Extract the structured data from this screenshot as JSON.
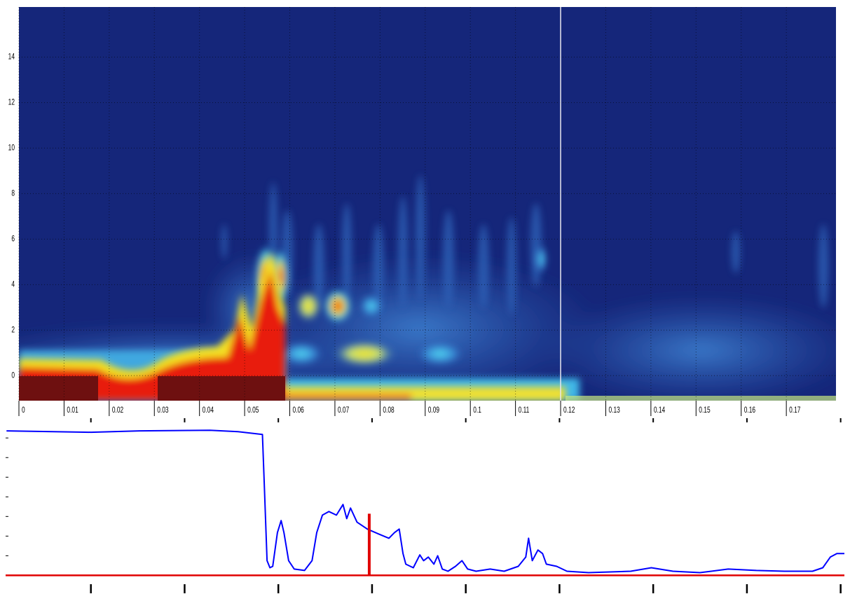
{
  "chart_data": [
    {
      "type": "heatmap",
      "xlim": [
        0,
        0.181
      ],
      "ylim": [
        -1.1,
        16.2
      ],
      "xticks": [
        0,
        0.01,
        0.02,
        0.03,
        0.04,
        0.05,
        0.06,
        0.07,
        0.08,
        0.09,
        0.1,
        0.11,
        0.12,
        0.13,
        0.14,
        0.15,
        0.16,
        0.17
      ],
      "yticks": [
        0,
        2,
        4,
        6,
        8,
        10,
        12,
        14
      ],
      "grid": true,
      "cursor_x": 0.12,
      "background": "#15267a"
    },
    {
      "type": "line",
      "xlim": [
        0.09,
        9.04
      ],
      "ylim": [
        -0.2,
        7.9
      ],
      "xticks": [
        1,
        2,
        3,
        4,
        5,
        6,
        7,
        8,
        9
      ],
      "yticks": [
        1,
        2,
        3,
        4,
        5,
        6,
        7
      ],
      "x": [
        0.1,
        1.0,
        1.52,
        2.27,
        2.57,
        2.83,
        2.85,
        2.88,
        2.91,
        2.94,
        2.99,
        3.03,
        3.06,
        3.11,
        3.17,
        3.28,
        3.36,
        3.41,
        3.47,
        3.54,
        3.62,
        3.69,
        3.73,
        3.77,
        3.84,
        3.95,
        4.07,
        4.18,
        4.24,
        4.29,
        4.33,
        4.36,
        4.44,
        4.51,
        4.55,
        4.6,
        4.66,
        4.7,
        4.75,
        4.81,
        4.89,
        4.96,
        5.02,
        5.11,
        5.26,
        5.41,
        5.56,
        5.64,
        5.67,
        5.71,
        5.77,
        5.82,
        5.86,
        5.97,
        6.08,
        6.31,
        6.76,
        6.98,
        7.21,
        7.5,
        7.8,
        8.1,
        8.4,
        8.7,
        8.81,
        8.89,
        8.96,
        9.04
      ],
      "series": [
        {
          "color": "#0000ff",
          "values": [
            7.36,
            7.29,
            7.36,
            7.39,
            7.32,
            7.18,
            4.68,
            0.75,
            0.39,
            0.46,
            2.18,
            2.79,
            2.18,
            0.75,
            0.32,
            0.25,
            0.75,
            2.18,
            3.07,
            3.25,
            3.07,
            3.61,
            2.89,
            3.43,
            2.71,
            2.36,
            2.11,
            1.89,
            2.18,
            2.36,
            1.11,
            0.57,
            0.39,
            1.04,
            0.75,
            0.93,
            0.57,
            1.0,
            0.32,
            0.21,
            0.46,
            0.75,
            0.32,
            0.21,
            0.32,
            0.21,
            0.46,
            0.93,
            1.89,
            0.75,
            1.29,
            1.11,
            0.57,
            0.46,
            0.21,
            0.14,
            0.21,
            0.39,
            0.21,
            0.14,
            0.32,
            0.25,
            0.21,
            0.21,
            0.39,
            0.93,
            1.11,
            1.11
          ]
        }
      ],
      "reference_line": {
        "y": 0,
        "color": "#e00000"
      },
      "marker": {
        "x": 3.97,
        "y": 3.14,
        "color": "#e00000"
      }
    }
  ]
}
